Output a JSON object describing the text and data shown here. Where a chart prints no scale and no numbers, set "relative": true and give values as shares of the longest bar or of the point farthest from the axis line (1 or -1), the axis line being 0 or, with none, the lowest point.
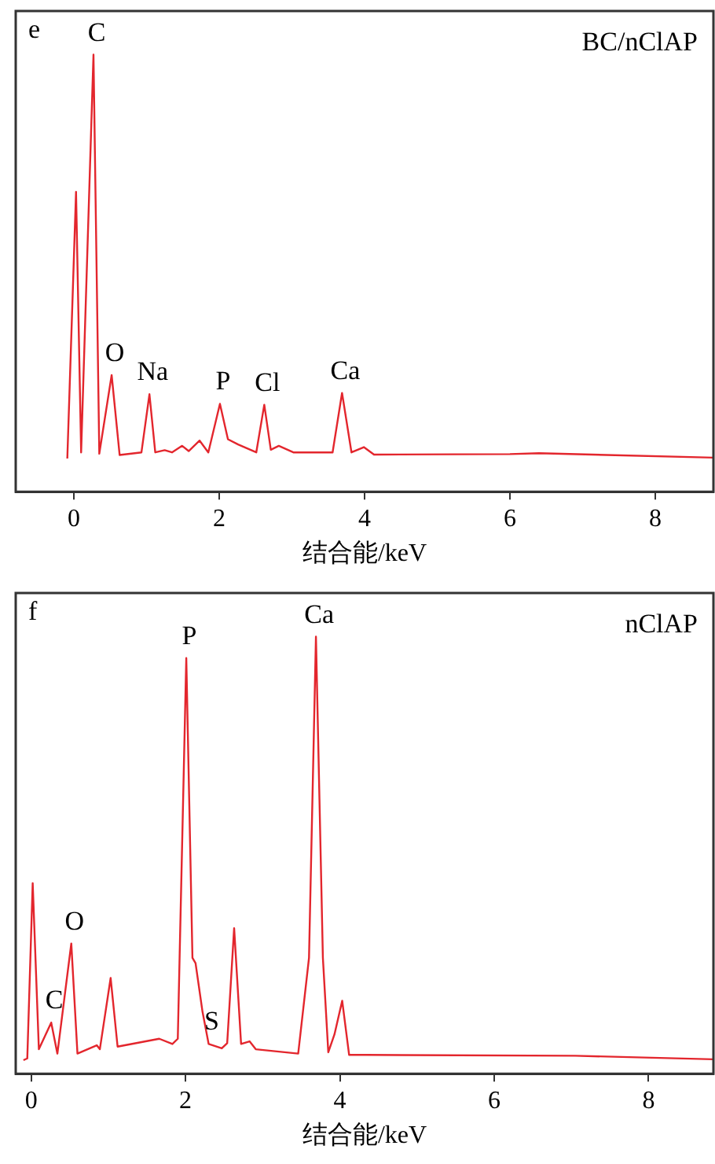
{
  "chart_data": [
    {
      "type": "line",
      "title": "e",
      "xlabel": "结合能/keV",
      "relative": true,
      "color": "#e3262d",
      "x": [
        -0.09,
        0.03,
        0.1,
        0.27,
        0.35,
        0.52,
        0.63,
        0.93,
        1.04,
        1.12,
        1.25,
        1.35,
        1.49,
        1.58,
        1.73,
        1.85,
        2.01,
        2.12,
        2.26,
        2.51,
        2.62,
        2.71,
        2.82,
        3.02,
        3.56,
        3.69,
        3.82,
        3.99,
        4.13,
        6.0,
        6.4,
        8.8
      ],
      "values": [
        0.076,
        0.686,
        0.09,
        1.0,
        0.087,
        0.267,
        0.084,
        0.09,
        0.223,
        0.09,
        0.095,
        0.09,
        0.105,
        0.093,
        0.117,
        0.09,
        0.201,
        0.12,
        0.108,
        0.09,
        0.199,
        0.096,
        0.105,
        0.09,
        0.09,
        0.226,
        0.09,
        0.102,
        0.085,
        0.086,
        0.088,
        0.078
      ],
      "xlim": [
        -0.8,
        8.8
      ],
      "xticks": [
        0,
        2,
        4,
        6,
        8
      ],
      "annotations": [
        "BC/nClAP",
        {
          "text": "C",
          "x": 0.27,
          "y": 1.0
        },
        {
          "text": "O",
          "x": 0.52,
          "y": 0.267
        },
        {
          "text": "Na",
          "x": 1.04,
          "y": 0.223
        },
        {
          "text": "P",
          "x": 2.01,
          "y": 0.201
        },
        {
          "text": "Cl",
          "x": 2.62,
          "y": 0.199
        },
        {
          "text": "Ca",
          "x": 3.69,
          "y": 0.226
        }
      ]
    },
    {
      "type": "line",
      "title": "f",
      "xlabel": "结合能/keV",
      "relative": true,
      "color": "#e3262d",
      "x": [
        -0.1,
        -0.05,
        0.02,
        0.1,
        0.26,
        0.34,
        0.52,
        0.6,
        0.85,
        0.89,
        1.03,
        1.12,
        1.66,
        1.83,
        1.9,
        2.01,
        2.09,
        2.13,
        2.22,
        2.3,
        2.47,
        2.54,
        2.63,
        2.72,
        2.83,
        2.91,
        3.46,
        3.6,
        3.69,
        3.78,
        3.85,
        3.93,
        4.03,
        4.12,
        4.34,
        7.05,
        8.84
      ],
      "values": [
        0.031,
        0.035,
        0.436,
        0.056,
        0.117,
        0.046,
        0.298,
        0.046,
        0.065,
        0.056,
        0.219,
        0.062,
        0.08,
        0.068,
        0.08,
        0.951,
        0.265,
        0.253,
        0.142,
        0.068,
        0.058,
        0.07,
        0.333,
        0.068,
        0.074,
        0.056,
        0.046,
        0.265,
        1.0,
        0.265,
        0.049,
        0.09,
        0.167,
        0.043,
        0.043,
        0.041,
        0.033
      ],
      "xlim": [
        -0.2,
        8.84
      ],
      "xticks": [
        0,
        2,
        4,
        6,
        8
      ],
      "annotations": [
        "nClAP",
        {
          "text": "P",
          "x": 2.01,
          "y": 0.951
        },
        {
          "text": "Ca",
          "x": 3.69,
          "y": 1.0
        },
        {
          "text": "O",
          "x": 0.52,
          "y": 0.298
        },
        {
          "text": "C",
          "x": 0.26,
          "y": 0.117
        },
        {
          "text": "S",
          "x": 2.3,
          "y": 0.068
        }
      ]
    }
  ]
}
